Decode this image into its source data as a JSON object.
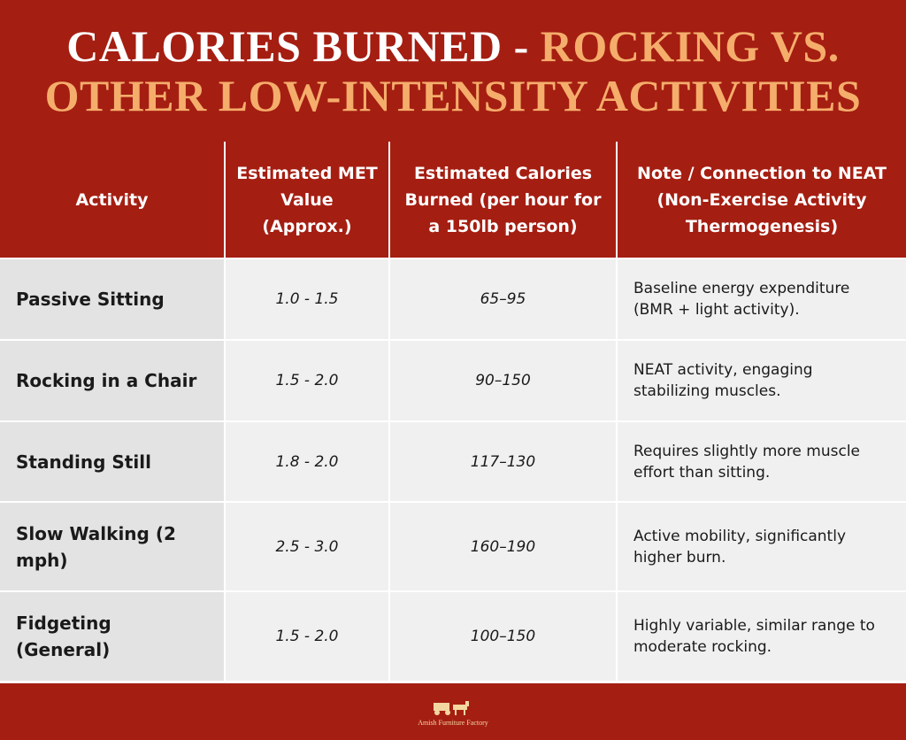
{
  "title": {
    "line1": [
      "CALORIES BURNED - ",
      "ROCKING VS."
    ],
    "line2": "OTHER LOW-INTENSITY ACTIVITIES"
  },
  "table": {
    "header": [
      "Activity",
      "Estimated MET Value (Approx.)",
      "Estimated Calories Burned (per hour for a 150lb person)",
      "Note / Connection to NEAT (Non-Exercise Activity Thermogenesis)"
    ],
    "rows": [
      [
        "Passive Sitting",
        "1.0 - 1.5",
        "65–95",
        "Baseline energy expenditure (BMR + light activity)."
      ],
      [
        "Rocking in a Chair",
        "1.5 - 2.0",
        "90–150",
        "NEAT activity, engaging stabilizing muscles."
      ],
      [
        "Standing Still",
        "1.8 - 2.0",
        "117–130",
        "Requires slightly more muscle effort than sitting."
      ],
      [
        "Slow Walking (2 mph)",
        "2.5 - 3.0",
        "160–190",
        "Active mobility, significantly higher burn."
      ],
      [
        "Fidgeting (General)",
        "1.5 - 2.0",
        "100–150",
        "Highly variable, similar range to moderate rocking."
      ]
    ]
  },
  "footer": {
    "logo": "Amish Furniture Factory"
  }
}
